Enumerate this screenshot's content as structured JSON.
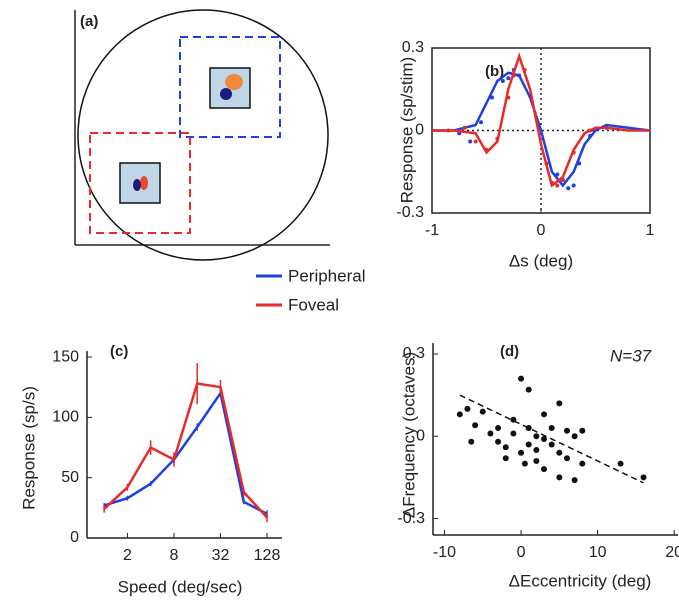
{
  "chart_data": [
    {
      "type": "diagram",
      "label": "(a)"
    },
    {
      "type": "line",
      "label": "(b)",
      "x_label": "Δs (deg)",
      "y_label": "Response (sp/stim)",
      "xlim": [
        -1,
        1
      ],
      "ylim": [
        -0.3,
        0.3
      ],
      "xticks": [
        -1,
        0,
        1
      ],
      "yticks": [
        -0.3,
        0,
        0.3
      ],
      "box": true,
      "x": [
        -1,
        -0.8,
        -0.6,
        -0.5,
        -0.4,
        -0.3,
        -0.2,
        -0.1,
        0,
        0.1,
        0.2,
        0.3,
        0.4,
        0.5,
        0.6,
        0.8,
        1
      ],
      "series": [
        {
          "name": "Peripheral",
          "color": "#1f3fe0",
          "values": [
            0,
            0,
            0.02,
            0.1,
            0.18,
            0.21,
            0.2,
            0.12,
            0,
            -0.15,
            -0.2,
            -0.15,
            -0.05,
            0,
            0.02,
            0.01,
            0
          ],
          "points_x": [
            -0.75,
            -0.65,
            -0.55,
            -0.45,
            -0.35,
            -0.3,
            -0.25,
            -0.2,
            0.15,
            0.2,
            0.25,
            0.3,
            0.35,
            0.45,
            0.6
          ],
          "points": [
            -0.01,
            -0.04,
            0.03,
            0.12,
            0.18,
            0.19,
            0.22,
            0.2,
            -0.16,
            -0.18,
            -0.21,
            -0.2,
            -0.12,
            -0.02,
            0.01
          ]
        },
        {
          "name": "Foveal",
          "color": "#e82a2a",
          "values": [
            0,
            0,
            -0.01,
            -0.08,
            -0.04,
            0.15,
            0.27,
            0.15,
            -0.05,
            -0.2,
            -0.17,
            -0.07,
            -0.01,
            0.01,
            0.01,
            0,
            0
          ],
          "points_x": [
            -0.85,
            -0.7,
            -0.6,
            -0.5,
            -0.4,
            -0.3,
            -0.25,
            -0.15,
            0.05,
            0.1,
            0.15,
            0.2,
            0.3,
            0.45
          ],
          "points": [
            0,
            0.01,
            -0.04,
            -0.07,
            -0.03,
            0.12,
            0.2,
            0.22,
            -0.12,
            -0.19,
            -0.2,
            -0.18,
            -0.08,
            0
          ]
        }
      ]
    },
    {
      "type": "line",
      "label": "(c)",
      "x_label": "Speed (deg/sec)",
      "y_label": "Response (sp/s)",
      "xscale": "log",
      "xlim": [
        0.6,
        200
      ],
      "ylim": [
        0,
        155
      ],
      "xticks": [
        2,
        8,
        32,
        128
      ],
      "yticks": [
        0,
        50,
        100,
        150
      ],
      "x": [
        1,
        2,
        4,
        8,
        16,
        32,
        64,
        128
      ],
      "series": [
        {
          "name": "Peripheral",
          "color": "#1f3fe0",
          "values": [
            27,
            33,
            45,
            65,
            92,
            120,
            30,
            20
          ],
          "errors": [
            2,
            2,
            2,
            3,
            3,
            3,
            2,
            3
          ]
        },
        {
          "name": "Foveal",
          "color": "#e82a2a",
          "values": [
            24,
            42,
            75,
            65,
            128,
            125,
            38,
            17
          ],
          "errors": [
            3,
            3,
            6,
            6,
            17,
            6,
            3,
            4
          ]
        }
      ]
    },
    {
      "type": "scatter",
      "label": "(d)",
      "annotation": "N=37",
      "x_label": "ΔEccentricity (deg)",
      "y_label": "ΔFrequency (octaves)",
      "xlim": [
        -11.5,
        20.5
      ],
      "ylim": [
        -0.36,
        0.34
      ],
      "xticks": [
        -10,
        0,
        10,
        20
      ],
      "yticks": [
        -0.3,
        0,
        0.3
      ],
      "color": "#111",
      "x": [
        -8,
        -7,
        -6,
        -5,
        -6.5,
        -4,
        -3,
        -3,
        -2,
        -1,
        -1,
        0,
        0,
        1,
        1,
        1,
        2,
        2,
        2,
        3,
        3,
        3,
        4,
        4,
        5,
        5,
        5,
        6,
        6,
        7,
        7,
        8,
        8,
        -2,
        0.5,
        13,
        16
      ],
      "values": [
        0.08,
        0.1,
        0.04,
        0.09,
        -0.02,
        0.01,
        0.03,
        -0.02,
        -0.04,
        0.06,
        0.01,
        0.21,
        -0.06,
        0.17,
        0.03,
        -0.03,
        0,
        -0.09,
        -0.05,
        0.08,
        -0.01,
        -0.12,
        -0.03,
        0.03,
        0.12,
        -0.06,
        -0.15,
        -0.08,
        0.02,
        -0.16,
        0,
        0.02,
        -0.1,
        -0.08,
        -0.1,
        -0.1,
        -0.15
      ],
      "fit": {
        "x": [
          -8,
          16
        ],
        "values": [
          0.15,
          -0.17
        ]
      }
    }
  ]
}
